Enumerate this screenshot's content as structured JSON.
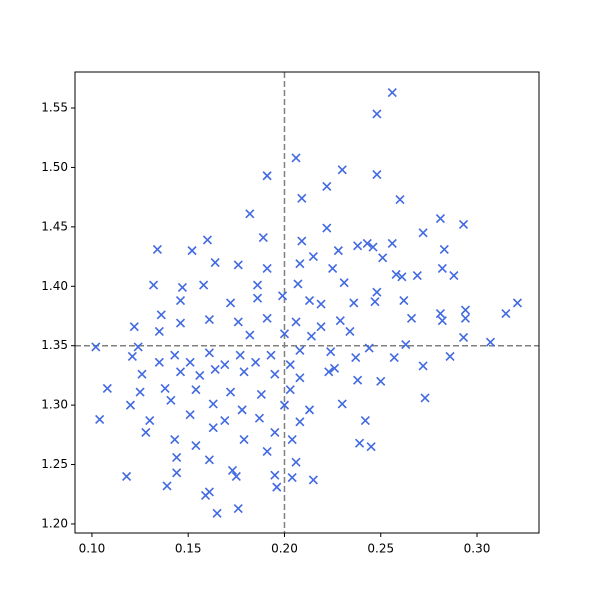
{
  "chart_data": {
    "type": "scatter",
    "marker": "x",
    "color": "#4169e1",
    "xlim": [
      0.0912,
      0.3322
    ],
    "ylim": [
      1.1924,
      1.5803
    ],
    "xticks": [
      {
        "value": 0.1,
        "label": "0.10"
      },
      {
        "value": 0.15,
        "label": "0.15"
      },
      {
        "value": 0.2,
        "label": "0.20"
      },
      {
        "value": 0.25,
        "label": "0.25"
      },
      {
        "value": 0.3,
        "label": "0.30"
      }
    ],
    "yticks": [
      {
        "value": 1.2,
        "label": "1.20"
      },
      1.25,
      {
        "value": 1.3,
        "label": "1.30"
      },
      1.35,
      {
        "value": 1.4,
        "label": "1.40"
      },
      1.45,
      {
        "value": 1.5,
        "label": "1.50"
      },
      1.55
    ],
    "reference_lines": {
      "x": 0.2,
      "y": 1.35,
      "color": "#808080"
    },
    "x": [
      0.256,
      0.248,
      0.206,
      0.23,
      0.248,
      0.191,
      0.222,
      0.26,
      0.209,
      0.182,
      0.281,
      0.293,
      0.134,
      0.152,
      0.16,
      0.189,
      0.209,
      0.222,
      0.272,
      0.256,
      0.243,
      0.246,
      0.283,
      0.238,
      0.228,
      0.215,
      0.176,
      0.164,
      0.208,
      0.251,
      0.288,
      0.258,
      0.261,
      0.269,
      0.282,
      0.225,
      0.191,
      0.132,
      0.147,
      0.158,
      0.186,
      0.207,
      0.231,
      0.248,
      0.146,
      0.172,
      0.186,
      0.199,
      0.213,
      0.219,
      0.236,
      0.247,
      0.262,
      0.321,
      0.315,
      0.294,
      0.281,
      0.294,
      0.266,
      0.136,
      0.122,
      0.161,
      0.176,
      0.191,
      0.206,
      0.219,
      0.229,
      0.282,
      0.135,
      0.146,
      0.102,
      0.182,
      0.2,
      0.214,
      0.234,
      0.307,
      0.293,
      0.263,
      0.244,
      0.124,
      0.121,
      0.286,
      0.257,
      0.237,
      0.224,
      0.208,
      0.193,
      0.177,
      0.161,
      0.143,
      0.135,
      0.151,
      0.169,
      0.185,
      0.203,
      0.226,
      0.272,
      0.126,
      0.146,
      0.156,
      0.164,
      0.179,
      0.195,
      0.208,
      0.223,
      0.238,
      0.108,
      0.125,
      0.138,
      0.154,
      0.172,
      0.188,
      0.203,
      0.25,
      0.273,
      0.12,
      0.141,
      0.163,
      0.178,
      0.2,
      0.213,
      0.23,
      0.104,
      0.13,
      0.151,
      0.169,
      0.187,
      0.208,
      0.242,
      0.128,
      0.143,
      0.163,
      0.179,
      0.195,
      0.204,
      0.239,
      0.245,
      0.154,
      0.144,
      0.161,
      0.191,
      0.173,
      0.206,
      0.118,
      0.144,
      0.175,
      0.195,
      0.215,
      0.204,
      0.139,
      0.196,
      0.161,
      0.159,
      0.176,
      0.165
    ],
    "y": [
      1.563,
      1.545,
      1.508,
      1.498,
      1.494,
      1.493,
      1.484,
      1.473,
      1.474,
      1.461,
      1.457,
      1.452,
      1.431,
      1.43,
      1.439,
      1.441,
      1.438,
      1.449,
      1.445,
      1.436,
      1.436,
      1.433,
      1.431,
      1.434,
      1.43,
      1.425,
      1.418,
      1.42,
      1.419,
      1.424,
      1.409,
      1.41,
      1.408,
      1.409,
      1.415,
      1.415,
      1.415,
      1.401,
      1.399,
      1.401,
      1.401,
      1.402,
      1.403,
      1.395,
      1.388,
      1.386,
      1.39,
      1.392,
      1.388,
      1.385,
      1.386,
      1.387,
      1.388,
      1.386,
      1.377,
      1.38,
      1.377,
      1.373,
      1.373,
      1.376,
      1.366,
      1.372,
      1.37,
      1.373,
      1.37,
      1.366,
      1.371,
      1.371,
      1.362,
      1.369,
      1.349,
      1.359,
      1.36,
      1.358,
      1.362,
      1.353,
      1.357,
      1.351,
      1.348,
      1.349,
      1.341,
      1.341,
      1.34,
      1.34,
      1.345,
      1.346,
      1.342,
      1.342,
      1.344,
      1.342,
      1.336,
      1.336,
      1.334,
      1.336,
      1.334,
      1.331,
      1.333,
      1.326,
      1.328,
      1.325,
      1.33,
      1.328,
      1.326,
      1.323,
      1.328,
      1.321,
      1.314,
      1.311,
      1.314,
      1.313,
      1.311,
      1.309,
      1.313,
      1.32,
      1.306,
      1.3,
      1.304,
      1.301,
      1.296,
      1.3,
      1.296,
      1.301,
      1.288,
      1.287,
      1.292,
      1.287,
      1.289,
      1.286,
      1.287,
      1.277,
      1.271,
      1.281,
      1.271,
      1.277,
      1.271,
      1.268,
      1.265,
      1.266,
      1.256,
      1.254,
      1.261,
      1.245,
      1.252,
      1.24,
      1.243,
      1.24,
      1.241,
      1.237,
      1.239,
      1.232,
      1.231,
      1.227,
      1.224,
      1.213,
      1.209
    ]
  }
}
